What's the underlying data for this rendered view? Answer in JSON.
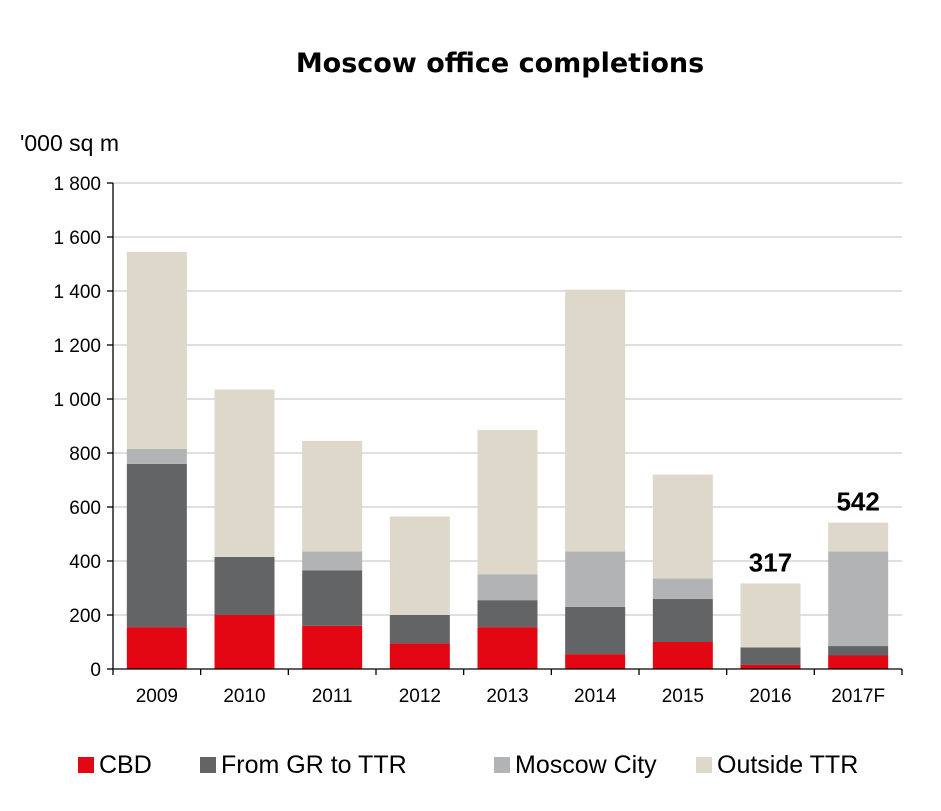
{
  "chart_data": {
    "type": "bar",
    "stacked": true,
    "title": "Moscow office completions",
    "ylabel": "'000 sq m",
    "xlabel": "",
    "ylim": [
      0,
      1800
    ],
    "yticks": [
      0,
      200,
      400,
      600,
      800,
      1000,
      1200,
      1400,
      1600,
      1800
    ],
    "ytick_labels": [
      "0",
      "200",
      "400",
      "600",
      "800",
      "1 000",
      "1 200",
      "1 400",
      "1 600",
      "1 800"
    ],
    "grid": true,
    "legend_position": "bottom",
    "categories": [
      "2009",
      "2010",
      "2011",
      "2012",
      "2013",
      "2014",
      "2015",
      "2016",
      "2017F"
    ],
    "series": [
      {
        "name": "CBD",
        "color": "#e30613",
        "values": [
          155,
          200,
          160,
          95,
          155,
          55,
          100,
          15,
          50
        ]
      },
      {
        "name": "From GR  to TTR",
        "color": "#636466",
        "values": [
          605,
          215,
          205,
          105,
          100,
          175,
          160,
          65,
          35
        ]
      },
      {
        "name": "Moscow City",
        "color": "#b2b3b5",
        "values": [
          55,
          0,
          70,
          0,
          95,
          205,
          75,
          0,
          350
        ]
      },
      {
        "name": "Outside TTR",
        "color": "#ddd8ca",
        "values": [
          730,
          620,
          410,
          365,
          535,
          970,
          385,
          237,
          107
        ]
      }
    ],
    "annotations": [
      {
        "category": "2016",
        "text": "317"
      },
      {
        "category": "2017F",
        "text": "542"
      }
    ]
  }
}
